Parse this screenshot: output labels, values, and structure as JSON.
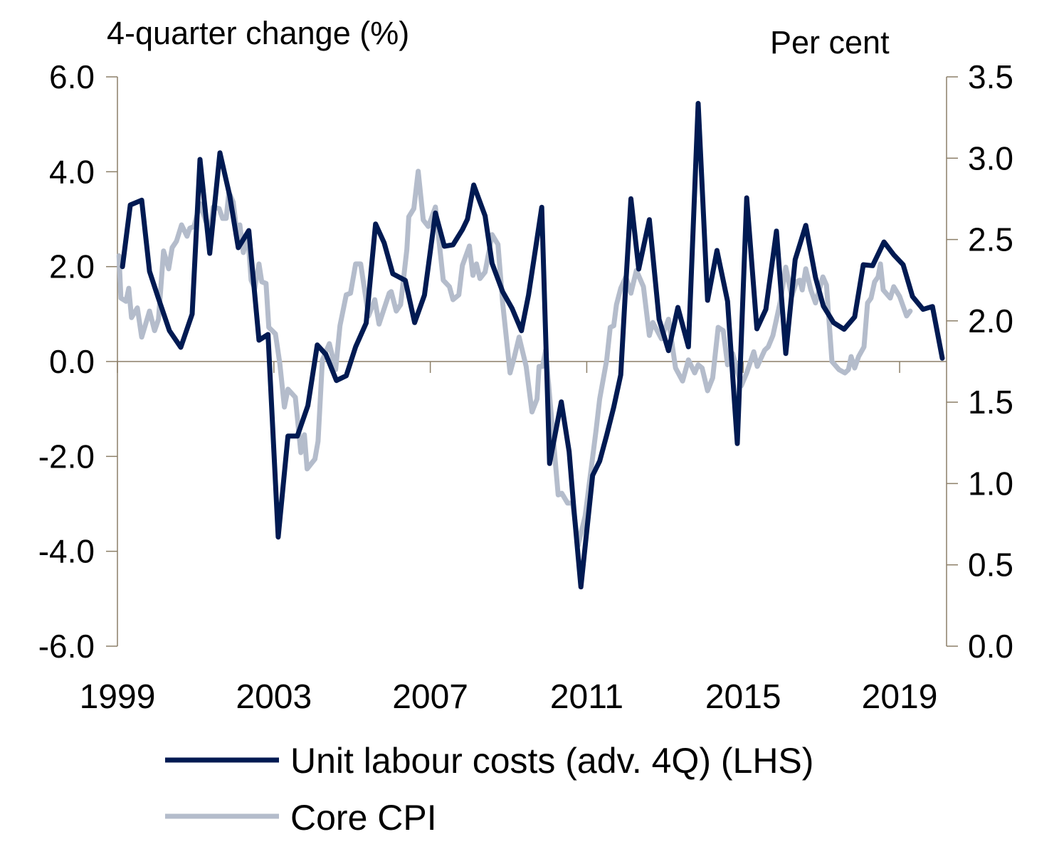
{
  "chart_data": {
    "type": "line",
    "title": "",
    "left_axis_title": "4-quarter change (%)",
    "right_axis_title": "Per cent",
    "xlim": [
      1999,
      2020.2
    ],
    "x_ticks": [
      "1999",
      "2003",
      "2007",
      "2011",
      "2015",
      "2019"
    ],
    "left_ylim": [
      -6,
      6
    ],
    "left_ticks": [
      "6.0",
      "4.0",
      "2.0",
      "0.0",
      "-2.0",
      "-4.0",
      "-6.0"
    ],
    "right_ylim": [
      0,
      3.5
    ],
    "right_ticks": [
      "3.5",
      "3.0",
      "2.5",
      "2.0",
      "1.5",
      "1.0",
      "0.5",
      "0.0"
    ],
    "grid": false,
    "legend_position": "bottom",
    "series": [
      {
        "name": "Unit labour costs (adv. 4Q) (LHS)",
        "axis": "left",
        "color": "#001a52",
        "points": [
          [
            1999.13,
            2.0
          ],
          [
            1999.33,
            3.3
          ],
          [
            1999.62,
            3.4
          ],
          [
            1999.82,
            1.9
          ],
          [
            2000.04,
            1.35
          ],
          [
            2000.33,
            0.65
          ],
          [
            2000.62,
            0.3
          ],
          [
            2000.91,
            1.0
          ],
          [
            2001.11,
            4.26
          ],
          [
            2001.36,
            2.28
          ],
          [
            2001.62,
            4.4
          ],
          [
            2001.87,
            3.5
          ],
          [
            2002.09,
            2.4
          ],
          [
            2002.36,
            2.76
          ],
          [
            2002.62,
            0.45
          ],
          [
            2002.85,
            0.57
          ],
          [
            2003.11,
            -3.7
          ],
          [
            2003.36,
            -1.57
          ],
          [
            2003.6,
            -1.57
          ],
          [
            2003.87,
            -0.93
          ],
          [
            2004.11,
            0.35
          ],
          [
            2004.33,
            0.15
          ],
          [
            2004.6,
            -0.4
          ],
          [
            2004.85,
            -0.3
          ],
          [
            2005.09,
            0.31
          ],
          [
            2005.36,
            0.81
          ],
          [
            2005.6,
            2.9
          ],
          [
            2005.82,
            2.5
          ],
          [
            2006.04,
            1.85
          ],
          [
            2006.36,
            1.71
          ],
          [
            2006.6,
            0.82
          ],
          [
            2006.85,
            1.4
          ],
          [
            2006.96,
            2.07
          ],
          [
            2007.13,
            3.13
          ],
          [
            2007.36,
            2.43
          ],
          [
            2007.58,
            2.46
          ],
          [
            2007.82,
            2.78
          ],
          [
            2007.95,
            3.0
          ],
          [
            2008.11,
            3.72
          ],
          [
            2008.4,
            3.07
          ],
          [
            2008.58,
            2.07
          ],
          [
            2008.85,
            1.47
          ],
          [
            2009.09,
            1.12
          ],
          [
            2009.33,
            0.65
          ],
          [
            2009.51,
            1.4
          ],
          [
            2009.69,
            2.37
          ],
          [
            2009.85,
            3.25
          ],
          [
            2010.05,
            -2.15
          ],
          [
            2010.35,
            -0.85
          ],
          [
            2010.55,
            -1.9
          ],
          [
            2010.67,
            -3.1
          ],
          [
            2010.85,
            -4.75
          ],
          [
            2011.15,
            -2.4
          ],
          [
            2011.33,
            -2.1
          ],
          [
            2011.51,
            -1.55
          ],
          [
            2011.69,
            -0.96
          ],
          [
            2011.87,
            -0.28
          ],
          [
            2012.0,
            1.65
          ],
          [
            2012.13,
            3.43
          ],
          [
            2012.33,
            1.95
          ],
          [
            2012.6,
            2.99
          ],
          [
            2012.85,
            0.89
          ],
          [
            2013.09,
            0.23
          ],
          [
            2013.33,
            1.14
          ],
          [
            2013.6,
            0.31
          ],
          [
            2013.85,
            5.44
          ],
          [
            2014.09,
            1.29
          ],
          [
            2014.33,
            2.34
          ],
          [
            2014.6,
            1.27
          ],
          [
            2014.85,
            -1.73
          ],
          [
            2015.09,
            3.45
          ],
          [
            2015.35,
            0.69
          ],
          [
            2015.58,
            1.1
          ],
          [
            2015.85,
            2.75
          ],
          [
            2016.09,
            0.17
          ],
          [
            2016.33,
            2.15
          ],
          [
            2016.6,
            2.87
          ],
          [
            2016.85,
            1.77
          ],
          [
            2017.05,
            1.17
          ],
          [
            2017.31,
            0.82
          ],
          [
            2017.58,
            0.68
          ],
          [
            2017.85,
            0.94
          ],
          [
            2018.07,
            2.04
          ],
          [
            2018.31,
            2.02
          ],
          [
            2018.6,
            2.52
          ],
          [
            2018.85,
            2.25
          ],
          [
            2019.09,
            2.04
          ],
          [
            2019.33,
            1.37
          ],
          [
            2019.6,
            1.1
          ],
          [
            2019.84,
            1.16
          ],
          [
            2020.09,
            0.07
          ]
        ]
      },
      {
        "name": "Core CPI",
        "axis": "right",
        "color": "#b4bccb",
        "points": [
          [
            1999.04,
            2.4
          ],
          [
            1999.09,
            2.14
          ],
          [
            1999.22,
            2.12
          ],
          [
            1999.29,
            2.2
          ],
          [
            1999.36,
            2.02
          ],
          [
            1999.51,
            2.08
          ],
          [
            1999.62,
            1.9
          ],
          [
            1999.82,
            2.06
          ],
          [
            1999.95,
            1.94
          ],
          [
            2000.05,
            2.01
          ],
          [
            2000.18,
            2.43
          ],
          [
            2000.31,
            2.32
          ],
          [
            2000.4,
            2.45
          ],
          [
            2000.51,
            2.49
          ],
          [
            2000.64,
            2.59
          ],
          [
            2000.78,
            2.52
          ],
          [
            2000.85,
            2.57
          ],
          [
            2000.96,
            2.58
          ],
          [
            2001.11,
            2.72
          ],
          [
            2001.36,
            2.54
          ],
          [
            2001.45,
            2.7
          ],
          [
            2001.6,
            2.69
          ],
          [
            2001.69,
            2.63
          ],
          [
            2001.78,
            2.63
          ],
          [
            2001.85,
            2.79
          ],
          [
            2001.96,
            2.73
          ],
          [
            2002.05,
            2.55
          ],
          [
            2002.13,
            2.59
          ],
          [
            2002.22,
            2.42
          ],
          [
            2002.33,
            2.54
          ],
          [
            2002.42,
            2.25
          ],
          [
            2002.51,
            2.2
          ],
          [
            2002.62,
            2.35
          ],
          [
            2002.69,
            2.24
          ],
          [
            2002.8,
            2.23
          ],
          [
            2002.87,
            1.96
          ],
          [
            2003.04,
            1.92
          ],
          [
            2003.15,
            1.74
          ],
          [
            2003.27,
            1.47
          ],
          [
            2003.36,
            1.58
          ],
          [
            2003.55,
            1.53
          ],
          [
            2003.69,
            1.19
          ],
          [
            2003.78,
            1.3
          ],
          [
            2003.85,
            1.09
          ],
          [
            2004.05,
            1.15
          ],
          [
            2004.13,
            1.26
          ],
          [
            2004.24,
            1.76
          ],
          [
            2004.42,
            1.86
          ],
          [
            2004.58,
            1.7
          ],
          [
            2004.69,
            1.97
          ],
          [
            2004.85,
            2.16
          ],
          [
            2004.96,
            2.17
          ],
          [
            2005.09,
            2.35
          ],
          [
            2005.22,
            2.35
          ],
          [
            2005.42,
            2.03
          ],
          [
            2005.58,
            2.13
          ],
          [
            2005.69,
            1.98
          ],
          [
            2005.95,
            2.17
          ],
          [
            2006.0,
            2.18
          ],
          [
            2006.13,
            2.06
          ],
          [
            2006.24,
            2.1
          ],
          [
            2006.4,
            2.44
          ],
          [
            2006.45,
            2.64
          ],
          [
            2006.58,
            2.69
          ],
          [
            2006.69,
            2.92
          ],
          [
            2006.82,
            2.62
          ],
          [
            2006.95,
            2.58
          ],
          [
            2007.13,
            2.7
          ],
          [
            2007.33,
            2.25
          ],
          [
            2007.49,
            2.21
          ],
          [
            2007.58,
            2.13
          ],
          [
            2007.73,
            2.16
          ],
          [
            2007.82,
            2.34
          ],
          [
            2008.0,
            2.46
          ],
          [
            2008.09,
            2.28
          ],
          [
            2008.18,
            2.35
          ],
          [
            2008.27,
            2.26
          ],
          [
            2008.4,
            2.3
          ],
          [
            2008.58,
            2.53
          ],
          [
            2008.73,
            2.47
          ],
          [
            2008.85,
            2.11
          ],
          [
            2009.04,
            1.68
          ],
          [
            2009.15,
            1.78
          ],
          [
            2009.27,
            1.9
          ],
          [
            2009.45,
            1.72
          ],
          [
            2009.6,
            1.44
          ],
          [
            2009.73,
            1.52
          ],
          [
            2009.78,
            1.72
          ],
          [
            2009.87,
            1.72
          ],
          [
            2009.95,
            1.82
          ],
          [
            2010.27,
            0.93
          ],
          [
            2010.36,
            0.94
          ],
          [
            2010.51,
            0.88
          ],
          [
            2010.64,
            0.88
          ],
          [
            2010.78,
            0.62
          ],
          [
            2010.96,
            0.8
          ],
          [
            2011.24,
            1.33
          ],
          [
            2011.33,
            1.52
          ],
          [
            2011.51,
            1.76
          ],
          [
            2011.6,
            1.96
          ],
          [
            2011.69,
            1.97
          ],
          [
            2011.76,
            2.1
          ],
          [
            2011.87,
            2.2
          ],
          [
            2012.0,
            2.27
          ],
          [
            2012.13,
            2.17
          ],
          [
            2012.27,
            2.31
          ],
          [
            2012.45,
            2.21
          ],
          [
            2012.6,
            1.91
          ],
          [
            2012.69,
            1.99
          ],
          [
            2012.91,
            1.89
          ],
          [
            2013.09,
            2.01
          ],
          [
            2013.27,
            1.71
          ],
          [
            2013.45,
            1.63
          ],
          [
            2013.6,
            1.76
          ],
          [
            2013.76,
            1.68
          ],
          [
            2013.85,
            1.73
          ],
          [
            2013.95,
            1.71
          ],
          [
            2014.09,
            1.57
          ],
          [
            2014.22,
            1.65
          ],
          [
            2014.36,
            1.96
          ],
          [
            2014.49,
            1.94
          ],
          [
            2014.6,
            1.73
          ],
          [
            2014.73,
            1.8
          ],
          [
            2014.95,
            1.6
          ],
          [
            2015.09,
            1.68
          ],
          [
            2015.27,
            1.81
          ],
          [
            2015.36,
            1.72
          ],
          [
            2015.55,
            1.82
          ],
          [
            2015.64,
            1.84
          ],
          [
            2015.76,
            1.91
          ],
          [
            2015.95,
            2.12
          ],
          [
            2016.09,
            2.33
          ],
          [
            2016.24,
            2.15
          ],
          [
            2016.36,
            2.24
          ],
          [
            2016.45,
            2.25
          ],
          [
            2016.51,
            2.19
          ],
          [
            2016.6,
            2.32
          ],
          [
            2016.73,
            2.19
          ],
          [
            2016.85,
            2.11
          ],
          [
            2017.04,
            2.27
          ],
          [
            2017.13,
            2.22
          ],
          [
            2017.27,
            1.75
          ],
          [
            2017.45,
            1.7
          ],
          [
            2017.6,
            1.68
          ],
          [
            2017.69,
            1.7
          ],
          [
            2017.76,
            1.78
          ],
          [
            2017.85,
            1.71
          ],
          [
            2017.95,
            1.78
          ],
          [
            2018.09,
            1.84
          ],
          [
            2018.18,
            2.11
          ],
          [
            2018.27,
            2.14
          ],
          [
            2018.36,
            2.24
          ],
          [
            2018.45,
            2.27
          ],
          [
            2018.51,
            2.35
          ],
          [
            2018.58,
            2.19
          ],
          [
            2018.76,
            2.14
          ],
          [
            2018.85,
            2.21
          ],
          [
            2019.0,
            2.15
          ],
          [
            2019.18,
            2.03
          ],
          [
            2019.27,
            2.06
          ]
        ]
      }
    ]
  }
}
